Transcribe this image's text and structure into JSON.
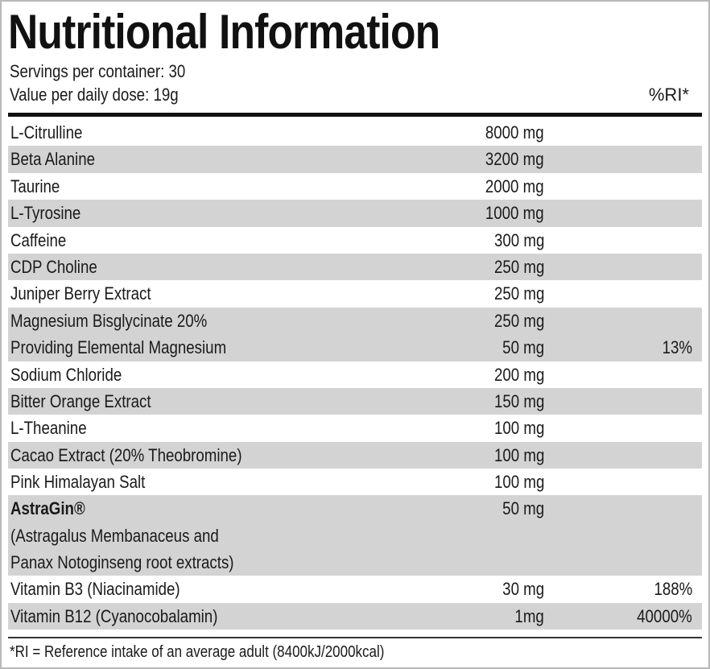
{
  "title": "Nutritional Information",
  "servings_line": "Servings per container: 30",
  "dose_line": "Value per daily dose: 19g",
  "ri_header": "%RI*",
  "rows": [
    {
      "name": "L-Citrulline",
      "amount": "8000 mg",
      "ri": ""
    },
    {
      "name": "Beta Alanine",
      "amount": "3200 mg",
      "ri": ""
    },
    {
      "name": "Taurine",
      "amount": "2000 mg",
      "ri": ""
    },
    {
      "name": "L-Tyrosine",
      "amount": "1000 mg",
      "ri": ""
    },
    {
      "name": "Caffeine",
      "amount": "300 mg",
      "ri": ""
    },
    {
      "name": "CDP Choline",
      "amount": "250 mg",
      "ri": ""
    },
    {
      "name": "Juniper Berry Extract",
      "amount": "250 mg",
      "ri": ""
    },
    {
      "name": "Magnesium Bisglycinate 20%",
      "amount": "250 mg",
      "ri": ""
    },
    {
      "name": "Providing Elemental Magnesium",
      "amount": "50 mg",
      "ri": "13%"
    },
    {
      "name": "Sodium Chloride",
      "amount": "200 mg",
      "ri": ""
    },
    {
      "name": "Bitter Orange Extract",
      "amount": "150 mg",
      "ri": ""
    },
    {
      "name": "L-Theanine",
      "amount": "100 mg",
      "ri": ""
    },
    {
      "name": "Cacao Extract (20% Theobromine)",
      "amount": "100 mg",
      "ri": ""
    },
    {
      "name": "Pink Himalayan Salt",
      "amount": "100 mg",
      "ri": ""
    }
  ],
  "astragin": {
    "brand": "AstraGin®",
    "line2": "(Astragalus Membanaceus and",
    "line3": "Panax Notoginseng root extracts)",
    "amount": "50 mg",
    "ri": ""
  },
  "rows_after": [
    {
      "name": "Vitamin B3 (Niacinamide)",
      "amount": "30 mg",
      "ri": "188%"
    },
    {
      "name": "Vitamin B12 (Cyanocobalamin)",
      "amount": "1mg",
      "ri": "40000%"
    }
  ],
  "footnote": "*RI = Reference intake of an average adult (8400kJ/2000kcal)",
  "colors": {
    "shade": "#d3d3d3",
    "text": "#1a1a1a",
    "border": "#b9b9b9"
  }
}
